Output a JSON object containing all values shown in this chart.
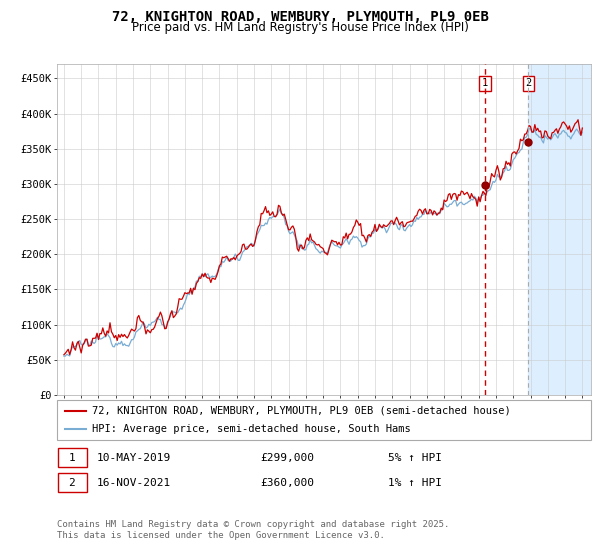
{
  "title": "72, KNIGHTON ROAD, WEMBURY, PLYMOUTH, PL9 0EB",
  "subtitle": "Price paid vs. HM Land Registry's House Price Index (HPI)",
  "ylim": [
    0,
    470000
  ],
  "yticks": [
    0,
    50000,
    100000,
    150000,
    200000,
    250000,
    300000,
    350000,
    400000,
    450000
  ],
  "ytick_labels": [
    "£0",
    "£50K",
    "£100K",
    "£150K",
    "£200K",
    "£250K",
    "£300K",
    "£350K",
    "£400K",
    "£450K"
  ],
  "xtick_years": [
    1995,
    1996,
    1997,
    1998,
    1999,
    2000,
    2001,
    2002,
    2003,
    2004,
    2005,
    2006,
    2007,
    2008,
    2009,
    2010,
    2011,
    2012,
    2013,
    2014,
    2015,
    2016,
    2017,
    2018,
    2019,
    2020,
    2021,
    2022,
    2023,
    2024,
    2025
  ],
  "red_line_color": "#cc0000",
  "blue_line_color": "#7aadd4",
  "background_color": "#ffffff",
  "plot_bg_color": "#ffffff",
  "shaded_region_color": "#ddeeff",
  "vline1_x": 2019.36,
  "vline2_x": 2021.88,
  "vline1_color": "#cc0000",
  "vline2_color": "#aaaaaa",
  "marker1_x": 2019.36,
  "marker1_y": 299000,
  "marker2_x": 2021.88,
  "marker2_y": 360000,
  "legend_label_red": "72, KNIGHTON ROAD, WEMBURY, PLYMOUTH, PL9 0EB (semi-detached house)",
  "legend_label_blue": "HPI: Average price, semi-detached house, South Hams",
  "annotation1_label": "1",
  "annotation2_label": "2",
  "table_row1": [
    "1",
    "10-MAY-2019",
    "£299,000",
    "5% ↑ HPI"
  ],
  "table_row2": [
    "2",
    "16-NOV-2021",
    "£360,000",
    "1% ↑ HPI"
  ],
  "footer": "Contains HM Land Registry data © Crown copyright and database right 2025.\nThis data is licensed under the Open Government Licence v3.0.",
  "title_fontsize": 10,
  "subtitle_fontsize": 8.5,
  "tick_fontsize": 7.5,
  "legend_fontsize": 7.5,
  "footer_fontsize": 6.5
}
